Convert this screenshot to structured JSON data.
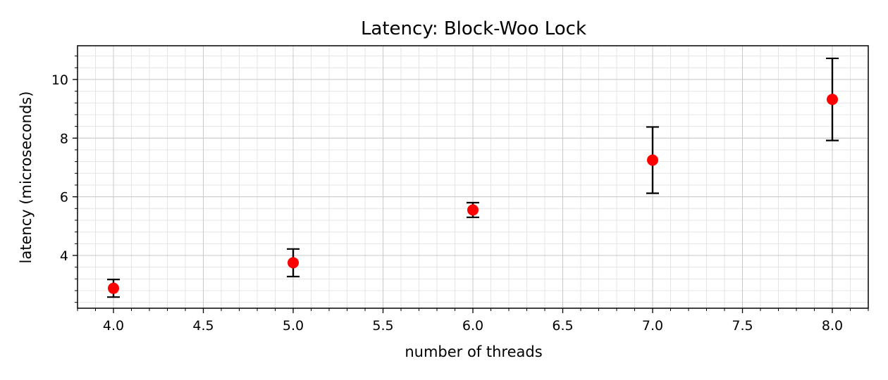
{
  "chart_data": {
    "type": "scatter",
    "title": "Latency: Block-Woo Lock",
    "xlabel": "number of threads",
    "ylabel": "latency (microseconds)",
    "xlim": [
      3.8,
      8.2
    ],
    "ylim": [
      2.2,
      11.15
    ],
    "grid": true,
    "minor_grid": true,
    "x_ticks": [
      4.0,
      4.5,
      5.0,
      5.5,
      6.0,
      6.5,
      7.0,
      7.5,
      8.0
    ],
    "x_tick_labels": [
      "4.0",
      "4.5",
      "5.0",
      "5.5",
      "6.0",
      "6.5",
      "7.0",
      "7.5",
      "8.0"
    ],
    "y_ticks": [
      4,
      6,
      8,
      10
    ],
    "y_tick_labels": [
      "4",
      "6",
      "8",
      "10"
    ],
    "marker_color": "#ff0000",
    "errorbar_color": "#000000",
    "points": [
      {
        "x": 4.0,
        "y": 2.88,
        "err_low": 2.58,
        "err_high": 3.18
      },
      {
        "x": 5.0,
        "y": 3.75,
        "err_low": 3.28,
        "err_high": 4.22
      },
      {
        "x": 6.0,
        "y": 5.55,
        "err_low": 5.3,
        "err_high": 5.8
      },
      {
        "x": 7.0,
        "y": 7.25,
        "err_low": 6.12,
        "err_high": 8.38
      },
      {
        "x": 8.0,
        "y": 9.32,
        "err_low": 7.92,
        "err_high": 10.72
      }
    ]
  }
}
